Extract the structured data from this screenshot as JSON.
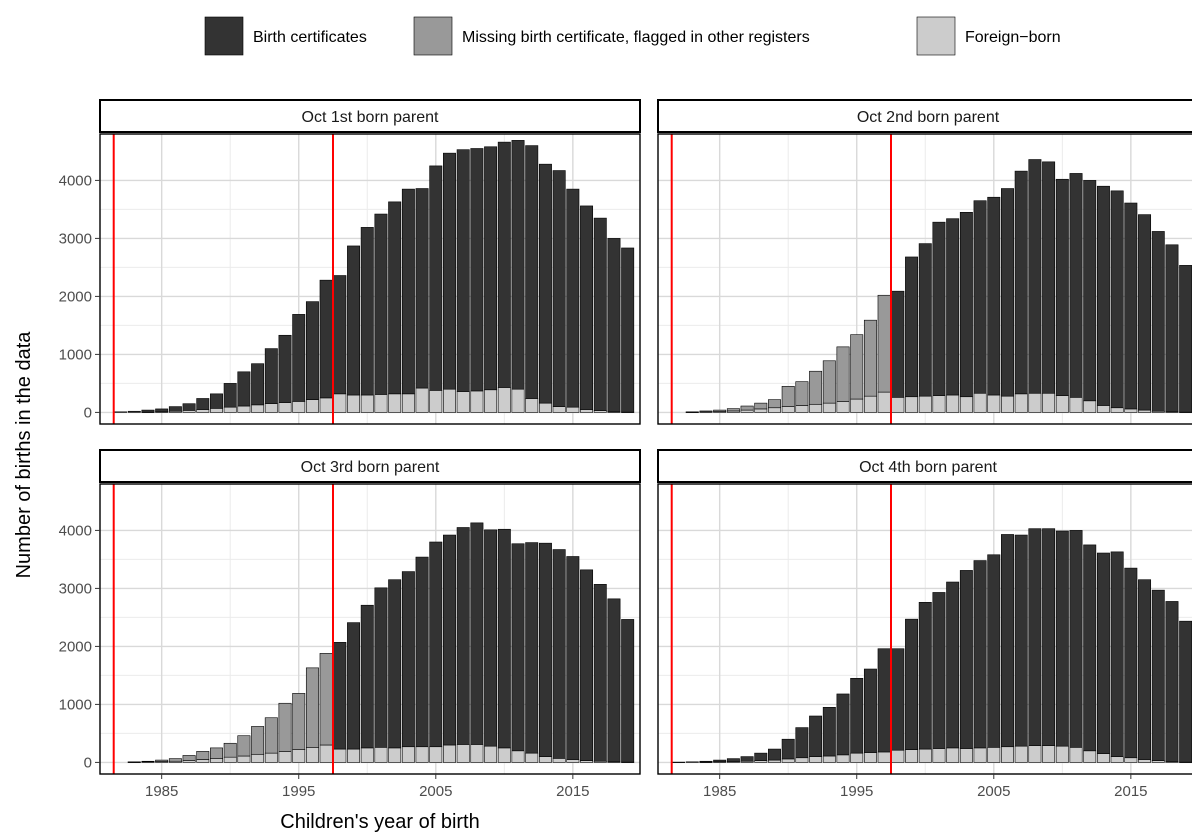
{
  "chart_data": {
    "type": "bar",
    "stacked": true,
    "xlabel": "Children's year of birth",
    "ylabel": "Number of births in the data",
    "xlim": [
      1980.5,
      2019.9
    ],
    "ylim": [
      -200,
      4800
    ],
    "x_ticks": [
      1985,
      1995,
      2005,
      2015
    ],
    "y_ticks": [
      0,
      1000,
      2000,
      3000,
      4000
    ],
    "reference_lines_x": [
      1981.5,
      1997.5
    ],
    "reference_line_color": "#ff0000",
    "grid": true,
    "legend_position": "top",
    "series": [
      {
        "name": "Birth certificates",
        "color": "#333333"
      },
      {
        "name": "Missing birth certificate, flagged in other registers",
        "color": "#999999"
      },
      {
        "name": "Foreign−born",
        "color": "#cccccc"
      }
    ],
    "years": [
      1982,
      1983,
      1984,
      1985,
      1986,
      1987,
      1988,
      1989,
      1990,
      1991,
      1992,
      1993,
      1994,
      1995,
      1996,
      1997,
      1998,
      1999,
      2000,
      2001,
      2002,
      2003,
      2004,
      2005,
      2006,
      2007,
      2008,
      2009,
      2010,
      2011,
      2012,
      2013,
      2014,
      2015,
      2016,
      2017,
      2018,
      2019
    ],
    "panels": [
      {
        "title": "Oct 1st born parent",
        "foreign_born": [
          0,
          0,
          5,
          10,
          20,
          35,
          50,
          70,
          90,
          110,
          130,
          150,
          170,
          190,
          220,
          250,
          320,
          300,
          300,
          310,
          320,
          320,
          420,
          380,
          400,
          360,
          370,
          390,
          430,
          400,
          240,
          160,
          100,
          90,
          50,
          30,
          10,
          5
        ],
        "missing_cert": [
          0,
          0,
          0,
          0,
          0,
          0,
          0,
          0,
          0,
          0,
          0,
          0,
          0,
          0,
          0,
          0,
          0,
          0,
          0,
          0,
          0,
          0,
          0,
          0,
          0,
          0,
          0,
          0,
          0,
          0,
          0,
          0,
          0,
          0,
          0,
          0,
          0,
          0
        ],
        "birth_cert": [
          10,
          20,
          35,
          50,
          80,
          115,
          190,
          250,
          410,
          590,
          710,
          950,
          1160,
          1500,
          1690,
          2030,
          2040,
          2570,
          2890,
          3110,
          3310,
          3530,
          3440,
          3870,
          4070,
          4170,
          4180,
          4190,
          4230,
          4290,
          4360,
          4120,
          4070,
          3760,
          3510,
          3320,
          2990,
          2830
        ]
      },
      {
        "title": "Oct 2nd born parent",
        "foreign_born": [
          0,
          5,
          10,
          15,
          25,
          40,
          60,
          80,
          100,
          120,
          140,
          160,
          190,
          230,
          280,
          350,
          260,
          270,
          280,
          290,
          300,
          270,
          330,
          300,
          280,
          320,
          330,
          330,
          290,
          260,
          200,
          120,
          80,
          60,
          40,
          20,
          10,
          5
        ],
        "missing_cert": [
          0,
          5,
          15,
          25,
          40,
          70,
          100,
          140,
          350,
          410,
          570,
          730,
          940,
          1110,
          1310,
          1670,
          0,
          0,
          0,
          0,
          0,
          0,
          0,
          0,
          0,
          0,
          0,
          0,
          0,
          0,
          0,
          0,
          0,
          0,
          0,
          0,
          0,
          0
        ],
        "birth_cert": [
          0,
          0,
          0,
          0,
          0,
          0,
          0,
          0,
          0,
          0,
          0,
          0,
          0,
          0,
          0,
          0,
          1830,
          2410,
          2630,
          2990,
          3040,
          3180,
          3320,
          3410,
          3580,
          3840,
          4030,
          3990,
          3730,
          3860,
          3800,
          3780,
          3740,
          3550,
          3370,
          3100,
          2880,
          2530
        ]
      },
      {
        "title": "Oct 3rd born parent",
        "foreign_born": [
          0,
          5,
          10,
          15,
          20,
          35,
          50,
          70,
          90,
          110,
          140,
          160,
          190,
          220,
          260,
          300,
          230,
          230,
          250,
          260,
          250,
          270,
          270,
          270,
          300,
          310,
          310,
          280,
          250,
          200,
          160,
          100,
          70,
          50,
          30,
          20,
          10,
          5
        ],
        "missing_cert": [
          0,
          5,
          10,
          25,
          45,
          85,
          140,
          180,
          240,
          350,
          480,
          610,
          830,
          970,
          1370,
          1580,
          0,
          0,
          0,
          0,
          0,
          0,
          0,
          0,
          0,
          0,
          0,
          0,
          0,
          0,
          0,
          0,
          0,
          0,
          0,
          0,
          0,
          0
        ],
        "birth_cert": [
          0,
          0,
          0,
          0,
          0,
          0,
          0,
          0,
          0,
          0,
          0,
          0,
          0,
          0,
          0,
          0,
          1840,
          2180,
          2460,
          2750,
          2900,
          3020,
          3270,
          3530,
          3620,
          3740,
          3820,
          3730,
          3770,
          3570,
          3630,
          3680,
          3600,
          3500,
          3290,
          3050,
          2810,
          2460
        ]
      },
      {
        "title": "Oct 4th born parent",
        "foreign_born": [
          0,
          0,
          5,
          10,
          15,
          20,
          30,
          40,
          60,
          80,
          100,
          110,
          130,
          160,
          170,
          180,
          210,
          220,
          230,
          240,
          250,
          240,
          250,
          260,
          270,
          280,
          290,
          290,
          280,
          260,
          200,
          150,
          100,
          80,
          50,
          30,
          15,
          5
        ],
        "missing_cert": [
          0,
          0,
          0,
          0,
          0,
          0,
          0,
          0,
          0,
          0,
          0,
          0,
          0,
          0,
          0,
          0,
          0,
          0,
          0,
          0,
          0,
          0,
          0,
          0,
          0,
          0,
          0,
          0,
          0,
          0,
          0,
          0,
          0,
          0,
          0,
          0,
          0,
          0
        ],
        "birth_cert": [
          5,
          10,
          15,
          30,
          50,
          80,
          130,
          190,
          340,
          520,
          700,
          840,
          1050,
          1290,
          1440,
          1780,
          1750,
          2250,
          2530,
          2690,
          2860,
          3070,
          3230,
          3320,
          3660,
          3640,
          3740,
          3740,
          3710,
          3740,
          3550,
          3460,
          3530,
          3270,
          3100,
          2940,
          2760,
          2430
        ]
      }
    ]
  }
}
